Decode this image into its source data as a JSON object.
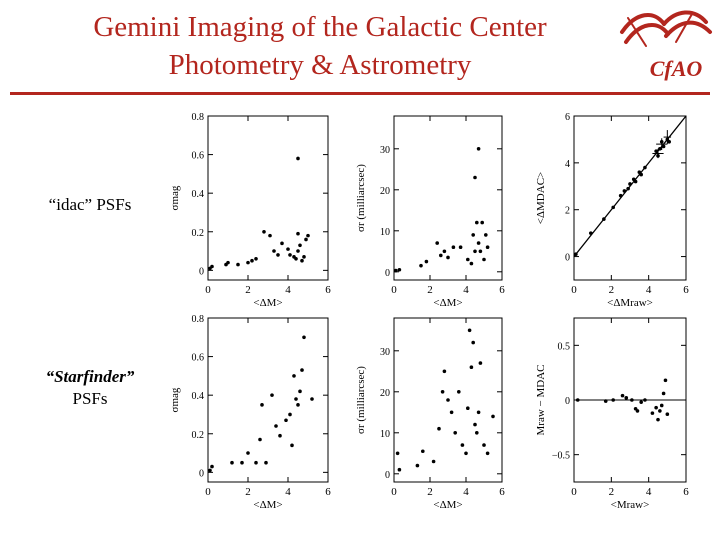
{
  "header": {
    "title_line1": "Gemini Imaging of the Galactic Center",
    "title_line2": "Photometry & Astrometry",
    "accent_color": "#b3261e"
  },
  "logo": {
    "text": "CfAO",
    "icon": "cfao-logo-icon"
  },
  "row_labels": {
    "row1": "“idac” PSFs",
    "row2_line1": "“Starfinder”",
    "row2_line2": "PSFs"
  },
  "chart_data": [
    {
      "type": "scatter",
      "panel": "r1c1",
      "xlabel": "<ΔM>",
      "ylabel": "σmag",
      "xlim": [
        0,
        6
      ],
      "ylim": [
        -0.05,
        0.8
      ],
      "xticks": [
        0,
        2,
        4,
        6
      ],
      "yticks": [
        0,
        0.2,
        0.4,
        0.6,
        0.8
      ],
      "xtick_labels": [
        "0",
        "2",
        "4",
        "6"
      ],
      "ytick_labels": [
        "0",
        "0.2",
        "0.4",
        "0.6",
        "0.8"
      ],
      "points": [
        [
          0.1,
          0.01
        ],
        [
          0.2,
          0.02
        ],
        [
          0.9,
          0.03
        ],
        [
          1.0,
          0.04
        ],
        [
          1.5,
          0.03
        ],
        [
          2.0,
          0.04
        ],
        [
          2.2,
          0.05
        ],
        [
          2.4,
          0.06
        ],
        [
          2.8,
          0.2
        ],
        [
          3.1,
          0.18
        ],
        [
          3.3,
          0.1
        ],
        [
          3.5,
          0.08
        ],
        [
          3.7,
          0.14
        ],
        [
          4.0,
          0.11
        ],
        [
          4.1,
          0.08
        ],
        [
          4.3,
          0.07
        ],
        [
          4.4,
          0.06
        ],
        [
          4.5,
          0.1
        ],
        [
          4.5,
          0.19
        ],
        [
          4.5,
          0.58
        ],
        [
          4.6,
          0.13
        ],
        [
          4.7,
          0.05
        ],
        [
          4.8,
          0.07
        ],
        [
          4.9,
          0.16
        ],
        [
          5.0,
          0.18
        ]
      ]
    },
    {
      "type": "scatter",
      "panel": "r1c2",
      "xlabel": "<ΔM>",
      "ylabel": "σr (milliarcsec)",
      "xlim": [
        0,
        6
      ],
      "ylim": [
        -2,
        38
      ],
      "xticks": [
        0,
        2,
        4,
        6
      ],
      "yticks": [
        0,
        10,
        20,
        30
      ],
      "xtick_labels": [
        "0",
        "2",
        "4",
        "6"
      ],
      "ytick_labels": [
        "0",
        "10",
        "20",
        "30"
      ],
      "points": [
        [
          0.1,
          0.3
        ],
        [
          0.3,
          0.5
        ],
        [
          1.5,
          1.5
        ],
        [
          1.8,
          2.5
        ],
        [
          2.4,
          7.0
        ],
        [
          2.6,
          4.0
        ],
        [
          2.8,
          5.0
        ],
        [
          3.0,
          3.5
        ],
        [
          3.3,
          6.0
        ],
        [
          3.7,
          6.0
        ],
        [
          4.1,
          3.0
        ],
        [
          4.3,
          2.0
        ],
        [
          4.4,
          9.0
        ],
        [
          4.5,
          5.0
        ],
        [
          4.5,
          23.0
        ],
        [
          4.6,
          12.0
        ],
        [
          4.7,
          30.0
        ],
        [
          4.7,
          7.0
        ],
        [
          4.8,
          5.0
        ],
        [
          4.9,
          12.0
        ],
        [
          5.0,
          3.0
        ],
        [
          5.1,
          9.0
        ],
        [
          5.2,
          6.0
        ]
      ]
    },
    {
      "type": "scatter",
      "panel": "r1c3",
      "xlabel": "<ΔMraw>",
      "ylabel": "<ΔMDAC>",
      "xlim": [
        0,
        6
      ],
      "ylim": [
        -1,
        6
      ],
      "xticks": [
        0,
        2,
        4,
        6
      ],
      "yticks": [
        0,
        2,
        4,
        6
      ],
      "xtick_labels": [
        "0",
        "2",
        "4",
        "6"
      ],
      "ytick_labels": [
        "0",
        "2",
        "4",
        "6"
      ],
      "line": [
        [
          0,
          0
        ],
        [
          6,
          6
        ]
      ],
      "points": [
        [
          0.1,
          0.1
        ],
        [
          0.9,
          1.0
        ],
        [
          1.6,
          1.6
        ],
        [
          2.1,
          2.1
        ],
        [
          2.5,
          2.6
        ],
        [
          2.7,
          2.8
        ],
        [
          2.9,
          2.9
        ],
        [
          3.0,
          3.1
        ],
        [
          3.2,
          3.3
        ],
        [
          3.3,
          3.2
        ],
        [
          3.5,
          3.6
        ],
        [
          3.6,
          3.5
        ],
        [
          3.8,
          3.8
        ],
        [
          4.4,
          4.5
        ],
        [
          4.5,
          4.3
        ],
        [
          4.6,
          4.6
        ],
        [
          4.7,
          4.9
        ],
        [
          4.8,
          4.7
        ],
        [
          5.0,
          5.0
        ],
        [
          5.1,
          4.9
        ]
      ],
      "errorbars": [
        [
          4.5,
          4.4,
          0.3,
          0.2
        ],
        [
          4.7,
          4.8,
          0.3,
          0.25
        ],
        [
          5.0,
          5.1,
          0.2,
          0.3
        ]
      ]
    },
    {
      "type": "scatter",
      "panel": "r2c1",
      "xlabel": "<ΔM>",
      "ylabel": "σmag",
      "xlim": [
        0,
        6
      ],
      "ylim": [
        -0.05,
        0.8
      ],
      "xticks": [
        0,
        2,
        4,
        6
      ],
      "yticks": [
        0,
        0.2,
        0.4,
        0.6,
        0.8
      ],
      "xtick_labels": [
        "0",
        "2",
        "4",
        "6"
      ],
      "ytick_labels": [
        "0",
        "0.2",
        "0.4",
        "0.6",
        "0.8"
      ],
      "points": [
        [
          0.1,
          0.01
        ],
        [
          0.2,
          0.03
        ],
        [
          1.2,
          0.05
        ],
        [
          1.7,
          0.05
        ],
        [
          2.0,
          0.1
        ],
        [
          2.4,
          0.05
        ],
        [
          2.6,
          0.17
        ],
        [
          2.7,
          0.35
        ],
        [
          2.9,
          0.05
        ],
        [
          3.2,
          0.4
        ],
        [
          3.4,
          0.24
        ],
        [
          3.6,
          0.19
        ],
        [
          3.9,
          0.27
        ],
        [
          4.1,
          0.3
        ],
        [
          4.2,
          0.14
        ],
        [
          4.3,
          0.5
        ],
        [
          4.4,
          0.38
        ],
        [
          4.5,
          0.35
        ],
        [
          4.6,
          0.42
        ],
        [
          4.7,
          0.53
        ],
        [
          4.8,
          0.7
        ],
        [
          5.2,
          0.38
        ]
      ]
    },
    {
      "type": "scatter",
      "panel": "r2c2",
      "xlabel": "<ΔM>",
      "ylabel": "σr (milliarcsec)",
      "xlim": [
        0,
        6
      ],
      "ylim": [
        -2,
        38
      ],
      "xticks": [
        0,
        2,
        4,
        6
      ],
      "yticks": [
        0,
        10,
        20,
        30
      ],
      "xtick_labels": [
        "0",
        "2",
        "4",
        "6"
      ],
      "ytick_labels": [
        "0",
        "10",
        "20",
        "30"
      ],
      "points": [
        [
          0.2,
          5.0
        ],
        [
          0.3,
          1.0
        ],
        [
          1.3,
          2.0
        ],
        [
          1.6,
          5.5
        ],
        [
          2.2,
          3.0
        ],
        [
          2.5,
          11.0
        ],
        [
          2.7,
          20.0
        ],
        [
          2.8,
          25.0
        ],
        [
          3.0,
          18.0
        ],
        [
          3.2,
          15.0
        ],
        [
          3.4,
          10.0
        ],
        [
          3.6,
          20.0
        ],
        [
          3.8,
          7.0
        ],
        [
          4.0,
          5.0
        ],
        [
          4.1,
          16.0
        ],
        [
          4.2,
          35.0
        ],
        [
          4.3,
          26.0
        ],
        [
          4.4,
          32.0
        ],
        [
          4.5,
          12.0
        ],
        [
          4.6,
          10.0
        ],
        [
          4.7,
          15.0
        ],
        [
          4.8,
          27.0
        ],
        [
          5.0,
          7.0
        ],
        [
          5.2,
          5.0
        ],
        [
          5.5,
          14.0
        ]
      ]
    },
    {
      "type": "scatter",
      "panel": "r2c3",
      "xlabel": "<Mraw>",
      "ylabel": "Mraw − MDAC",
      "xlim": [
        0,
        6
      ],
      "ylim": [
        -0.75,
        0.75
      ],
      "xticks": [
        0,
        2,
        4,
        6
      ],
      "yticks": [
        -0.5,
        0,
        0.5
      ],
      "xtick_labels": [
        "0",
        "2",
        "4",
        "6"
      ],
      "ytick_labels": [
        "−0.5",
        "0",
        "0.5"
      ],
      "hline": 0,
      "points": [
        [
          0.2,
          0.0
        ],
        [
          1.7,
          -0.01
        ],
        [
          2.1,
          0.0
        ],
        [
          2.6,
          0.04
        ],
        [
          2.8,
          0.02
        ],
        [
          3.1,
          0.0
        ],
        [
          3.3,
          -0.08
        ],
        [
          3.4,
          -0.1
        ],
        [
          3.6,
          -0.02
        ],
        [
          3.8,
          0.0
        ],
        [
          4.2,
          -0.12
        ],
        [
          4.4,
          -0.07
        ],
        [
          4.5,
          -0.18
        ],
        [
          4.6,
          -0.1
        ],
        [
          4.7,
          -0.05
        ],
        [
          4.8,
          0.06
        ],
        [
          4.9,
          0.18
        ],
        [
          5.0,
          -0.13
        ]
      ]
    }
  ]
}
